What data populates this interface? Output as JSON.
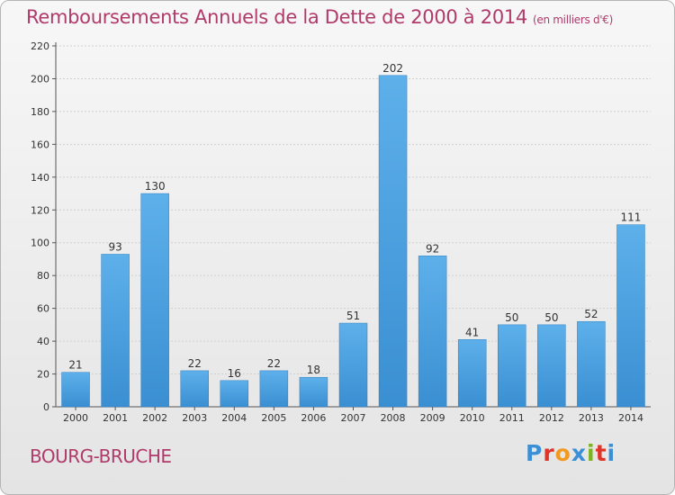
{
  "title": "Remboursements Annuels de la Dette de 2000 à 2014",
  "unit": "(en milliers d'€)",
  "commune": "BOURG-BRUCHE",
  "logo": {
    "text": "Proxiti",
    "colors": [
      "#3b8fd6",
      "#e0342a",
      "#f29a1f",
      "#3b8fd6",
      "#7ab51d",
      "#e0342a",
      "#3b8fd6"
    ]
  },
  "colors": {
    "bar": "#3a8fd2",
    "bar_light": "#5db0ea",
    "title": "#b03a6a",
    "grid": "#d0d0d0"
  },
  "chart_data": {
    "type": "bar",
    "categories": [
      "2000",
      "2001",
      "2002",
      "2003",
      "2004",
      "2005",
      "2006",
      "2007",
      "2008",
      "2009",
      "2010",
      "2011",
      "2012",
      "2013",
      "2014"
    ],
    "values": [
      21,
      93,
      130,
      22,
      16,
      22,
      18,
      51,
      202,
      92,
      41,
      50,
      50,
      52,
      111
    ],
    "ylim": [
      0,
      220
    ],
    "yticks": [
      0,
      20,
      40,
      60,
      80,
      100,
      120,
      140,
      160,
      180,
      200,
      220
    ],
    "grid": true,
    "legend": "none"
  }
}
